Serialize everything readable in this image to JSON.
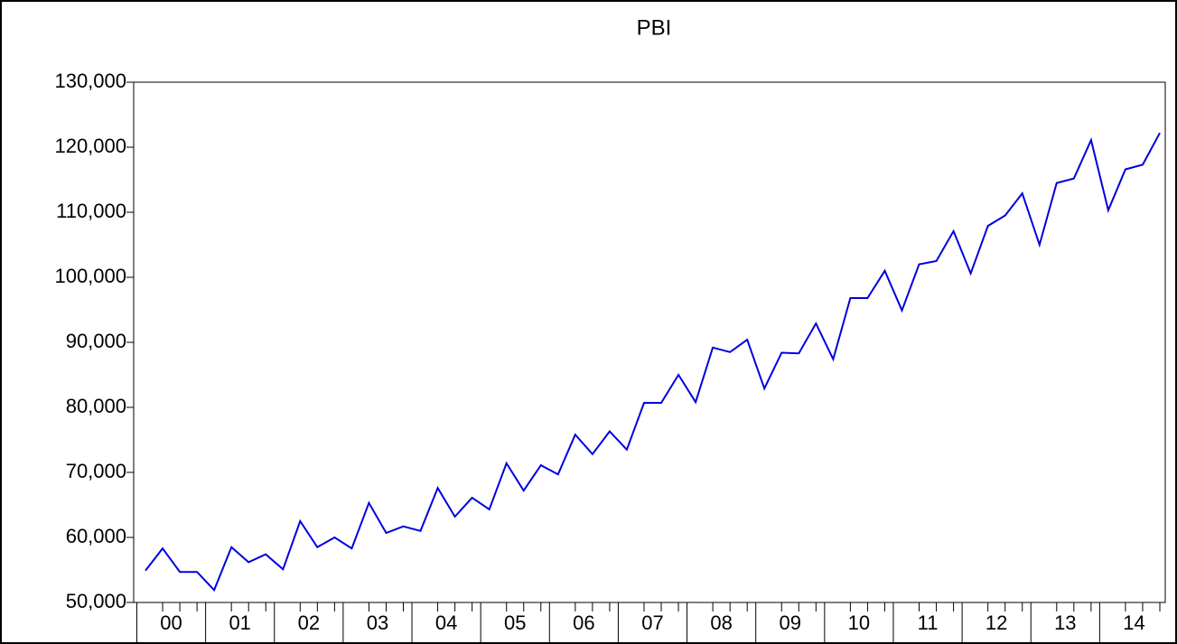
{
  "chart_data": {
    "type": "line",
    "title": "PBI",
    "categories": [
      "00",
      null,
      null,
      null,
      "01",
      null,
      null,
      null,
      "02",
      null,
      null,
      null,
      "03",
      null,
      null,
      null,
      "04",
      null,
      null,
      null,
      "05",
      null,
      null,
      null,
      "06",
      null,
      null,
      null,
      "07",
      null,
      null,
      null,
      "08",
      null,
      null,
      null,
      "09",
      null,
      null,
      null,
      "10",
      null,
      null,
      null,
      "11",
      null,
      null,
      null,
      "12",
      null,
      null,
      null,
      "13",
      null,
      null,
      null,
      "14",
      null,
      null,
      null
    ],
    "series": [
      {
        "name": "PBI",
        "color": "#0000e0",
        "values": [
          54900,
          58300,
          54700,
          54700,
          51900,
          58500,
          56200,
          57400,
          55100,
          62500,
          58500,
          60000,
          58300,
          65300,
          60700,
          61700,
          61000,
          67600,
          63200,
          66100,
          64300,
          71400,
          67200,
          71100,
          69700,
          75800,
          72800,
          76300,
          73500,
          80700,
          80700,
          85000,
          80800,
          89200,
          88500,
          90400,
          82900,
          88400,
          88300,
          92900,
          87400,
          96800,
          96800,
          101000,
          94900,
          102000,
          102500,
          107100,
          100600,
          107900,
          109500,
          112900,
          105000,
          114500,
          115200,
          121100,
          110300,
          116600,
          117300,
          122200
        ]
      }
    ],
    "ylim": [
      50000,
      130000
    ],
    "yticks": [
      {
        "value": 50000,
        "label": "50,000"
      },
      {
        "value": 60000,
        "label": "60,000"
      },
      {
        "value": 70000,
        "label": "70,000"
      },
      {
        "value": 80000,
        "label": "80,000"
      },
      {
        "value": 90000,
        "label": "90,000"
      },
      {
        "value": 100000,
        "label": "100,000"
      },
      {
        "value": 110000,
        "label": "110,000"
      },
      {
        "value": 120000,
        "label": "120,000"
      },
      {
        "value": 130000,
        "label": "130,000"
      }
    ],
    "grid": false
  }
}
